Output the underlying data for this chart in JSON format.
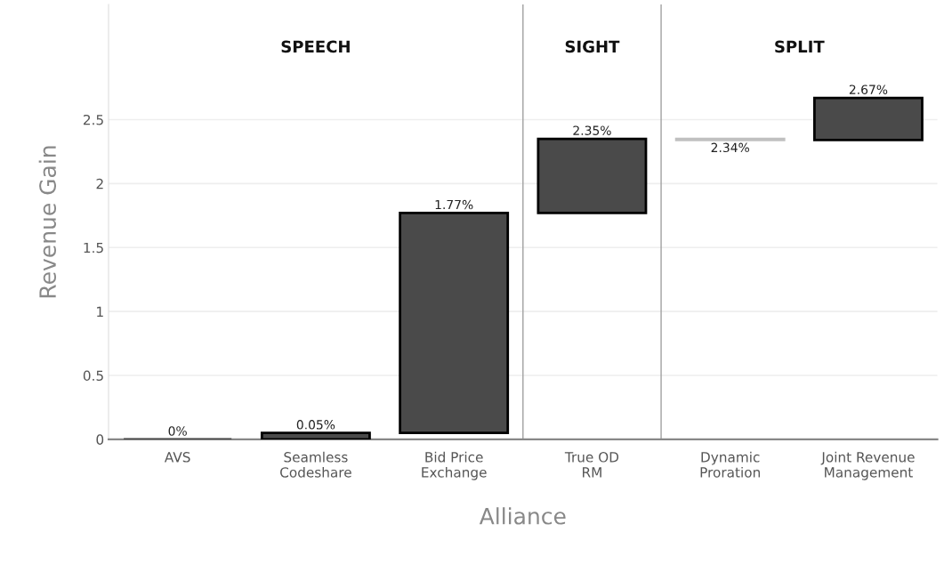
{
  "chart_data": {
    "type": "bar",
    "xlabel": "Alliance",
    "ylabel": "Revenue Gain",
    "categories": [
      "AVS",
      "Seamless\nCodeshare",
      "Bid Price\nExchange",
      "True OD\nRM",
      "Dynamic\nProration",
      "Joint Revenue\nManagement"
    ],
    "base": [
      0,
      0,
      0.05,
      1.77,
      2.35,
      2.34
    ],
    "values": [
      0,
      0.05,
      1.72,
      0.58,
      -0.01,
      0.33
    ],
    "colors": [
      "#4a4a4a",
      "#4a4a4a",
      "#4a4a4a",
      "#4a4a4a",
      "#c0c0c0",
      "#4a4a4a"
    ],
    "value_labels": [
      "0%",
      "0.05%",
      "1.77%",
      "2.35%",
      "2.34%",
      "2.67%"
    ],
    "ylim": [
      0,
      3.4
    ],
    "yticks": [
      0,
      0.5,
      1,
      1.5,
      2,
      2.5
    ],
    "grid": "y",
    "annotations": [
      "SPEECH",
      "SIGHT",
      "SPLIT"
    ]
  }
}
